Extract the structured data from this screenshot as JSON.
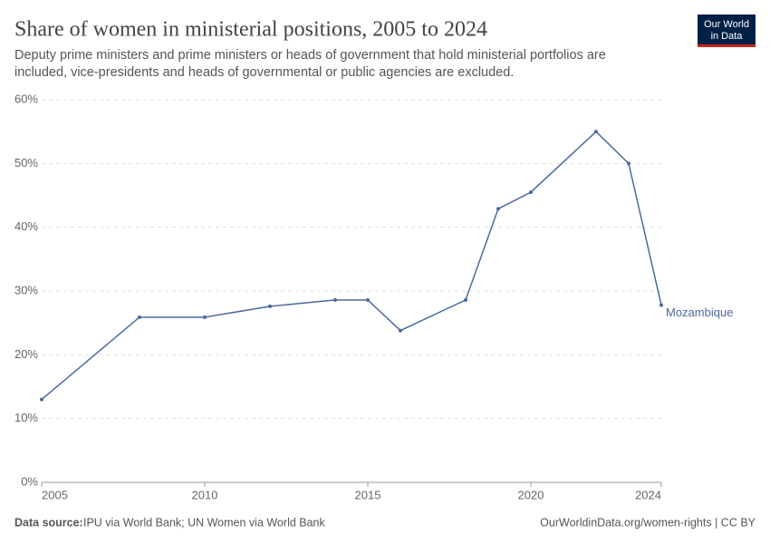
{
  "chart_data": {
    "type": "line",
    "title": "Share of women in ministerial positions, 2005 to 2024",
    "subtitle": [
      "Deputy prime ministers and prime ministers or heads of government that hold ministerial portfolios are",
      "included, vice-presidents and heads of governmental or public agencies are excluded."
    ],
    "logo": [
      "Our World",
      "in Data"
    ],
    "source_label": "Data source:",
    "source": "IPU via World Bank; UN Women via World Bank",
    "footer_right": "OurWorldinData.org/women-rights | CC BY",
    "x": [
      2005,
      2008,
      2010,
      2012,
      2014,
      2015,
      2016,
      2018,
      2019,
      2020,
      2022,
      2023,
      2024
    ],
    "series": [
      {
        "name": "Mozambique",
        "color": "#4c6a9c",
        "values": [
          13,
          25.9,
          25.9,
          27.6,
          28.6,
          28.6,
          23.8,
          28.6,
          42.9,
          45.5,
          55,
          50,
          27.8
        ]
      }
    ],
    "xlim": [
      2005,
      2024
    ],
    "xticks": [
      2005,
      2010,
      2015,
      2020,
      2024
    ],
    "ylim": [
      0,
      60
    ],
    "yticks": [
      {
        "value": 0,
        "label": "0%"
      },
      {
        "value": 10,
        "label": "10%"
      },
      {
        "value": 20,
        "label": "20%"
      },
      {
        "value": 30,
        "label": "30%"
      },
      {
        "value": 40,
        "label": "40%"
      },
      {
        "value": 50,
        "label": "50%"
      },
      {
        "value": 60,
        "label": "60%"
      }
    ],
    "grid": true
  }
}
